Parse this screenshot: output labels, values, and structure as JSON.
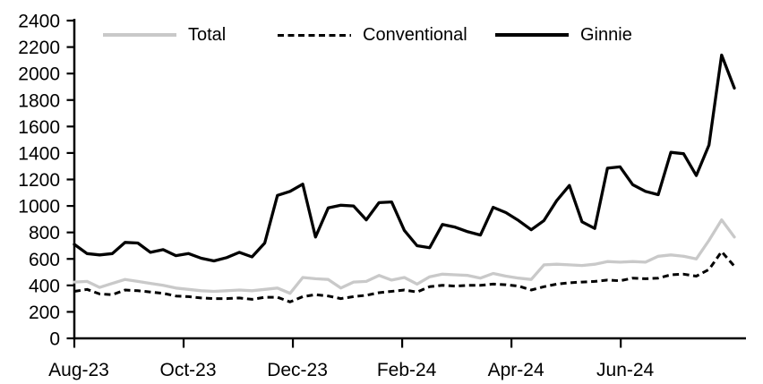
{
  "chart_data": {
    "type": "line",
    "title": "",
    "x_axis_note": "weekly observations from Aug-2023 to early Aug-2024",
    "x_tick_labels": [
      "Aug-23",
      "Oct-23",
      "Dec-23",
      "Feb-24",
      "Apr-24",
      "Jun-24"
    ],
    "x_tick_weeks": [
      0,
      8.61,
      17.22,
      25.83,
      34.44,
      43.05
    ],
    "ylim": [
      0,
      2400
    ],
    "y_tick_step": 200,
    "y_tick_labels": [
      "0",
      "200",
      "400",
      "600",
      "800",
      "1000",
      "1200",
      "1400",
      "1600",
      "1800",
      "2000",
      "2200",
      "2400"
    ],
    "grid": "off",
    "legend_position": "top-inside-horizontal",
    "series": [
      {
        "name": "Total",
        "color": "#c9c9c9",
        "style": "solid",
        "values": [
          425,
          430,
          385,
          415,
          445,
          430,
          415,
          400,
          380,
          370,
          360,
          355,
          360,
          365,
          360,
          370,
          380,
          340,
          460,
          450,
          445,
          380,
          425,
          430,
          475,
          440,
          460,
          410,
          465,
          485,
          480,
          475,
          455,
          490,
          470,
          455,
          445,
          555,
          560,
          555,
          550,
          560,
          580,
          575,
          580,
          575,
          620,
          630,
          620,
          600,
          740,
          895,
          765
        ]
      },
      {
        "name": "Conventional",
        "color": "#000000",
        "style": "dashed",
        "values": [
          355,
          370,
          335,
          330,
          365,
          360,
          350,
          340,
          320,
          315,
          305,
          300,
          300,
          305,
          295,
          310,
          310,
          275,
          315,
          330,
          320,
          300,
          315,
          325,
          345,
          355,
          365,
          350,
          390,
          400,
          395,
          400,
          400,
          410,
          405,
          395,
          365,
          390,
          410,
          420,
          425,
          430,
          440,
          435,
          455,
          450,
          455,
          480,
          485,
          470,
          520,
          655,
          545
        ]
      },
      {
        "name": "Ginnie",
        "color": "#000000",
        "style": "solid",
        "values": [
          710,
          640,
          630,
          640,
          725,
          720,
          650,
          670,
          625,
          640,
          605,
          585,
          610,
          650,
          615,
          720,
          1080,
          1110,
          1165,
          765,
          985,
          1005,
          1000,
          895,
          1025,
          1030,
          815,
          700,
          685,
          860,
          840,
          805,
          780,
          990,
          950,
          890,
          820,
          890,
          1040,
          1155,
          880,
          830,
          1285,
          1295,
          1160,
          1110,
          1085,
          1405,
          1395,
          1230,
          1460,
          2140,
          1890
        ]
      }
    ]
  }
}
